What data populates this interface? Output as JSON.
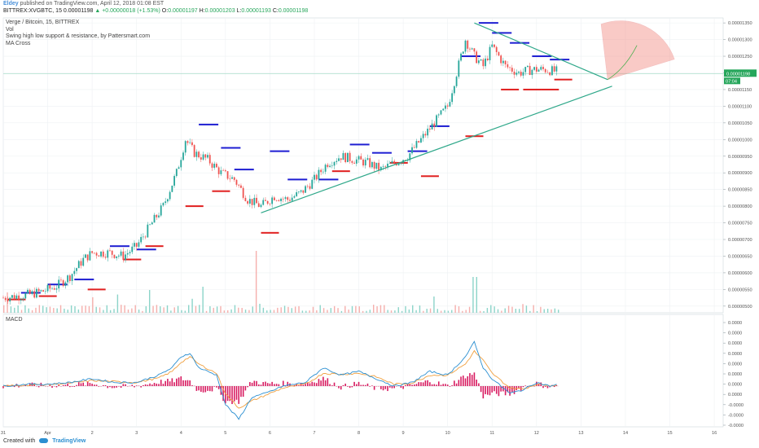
{
  "header": {
    "user": "Eldey",
    "published": "published on TradingView.com, April 12, 2018 01:08 EST",
    "symbol": "BITTREX:XVGBTC, 15",
    "last": "0.00001198",
    "change": "▲ +0.00000018 (+1.53%)",
    "open_label": "O:",
    "open": "0.00001197",
    "high_label": "H:",
    "high": "0.00001203",
    "low_label": "L:",
    "low": "0.00001193",
    "close_label": "C:",
    "close": "0.00001198"
  },
  "legend": {
    "title": "Verge / Bitcoin, 15, BITTREX",
    "vol": "Vol",
    "indicator": "Swing high low support & resistance, by Pattersmart.com",
    "ma": "MA Cross"
  },
  "macd_label": "MACD",
  "price_badge": "0.00001198",
  "price_badge2": "07:04",
  "colors": {
    "up": "#26a69a",
    "down": "#ef5350",
    "resistance": "#1e1ed2",
    "support": "#e02020",
    "trend": "#2fa88a",
    "macd_line": "#2b8fd1",
    "signal": "#f0a040",
    "hist": "#d81b60",
    "fan": "#f28b82",
    "badge": "#26a65b"
  },
  "footer": {
    "created": "Created with",
    "brand": "TradingView"
  },
  "chart_data": [
    {
      "type": "candlestick",
      "title": "Verge / Bitcoin, 15, BITTREX",
      "x_ticks": [
        "31",
        "Apr",
        "2",
        "3",
        "4",
        "5",
        "6",
        "7",
        "8",
        "9",
        "10",
        "11",
        "12",
        "13",
        "14",
        "15",
        "16"
      ],
      "y_ticks": [
        "0.00001350",
        "0.00001300",
        "0.00001250",
        "0.00001200",
        "0.00001150",
        "0.00001100",
        "0.00001050",
        "0.00001000",
        "0.00000950",
        "0.00000900",
        "0.00000850",
        "0.00000800",
        "0.00000750",
        "0.00000700",
        "0.00000650",
        "0.00000600",
        "0.00000550",
        "0.00000500"
      ],
      "ylim": [
        4.8e-06,
        1.365e-05
      ],
      "price_path": [
        [
          0,
          5.25e-06
        ],
        [
          0.3,
          5.3e-06
        ],
        [
          0.6,
          5.35e-06
        ],
        [
          0.9,
          5.45e-06
        ],
        [
          1.2,
          5.6e-06
        ],
        [
          1.5,
          5.9e-06
        ],
        [
          1.8,
          6.4e-06
        ],
        [
          2.0,
          6.6e-06
        ],
        [
          2.4,
          6.6e-06
        ],
        [
          2.7,
          6.5e-06
        ],
        [
          3.0,
          6.8e-06
        ],
        [
          3.3,
          7.4e-06
        ],
        [
          3.6,
          8e-06
        ],
        [
          3.9,
          9e-06
        ],
        [
          4.1,
          1e-05
        ],
        [
          4.3,
          9.6e-06
        ],
        [
          4.6,
          9.4e-06
        ],
        [
          4.9,
          9e-06
        ],
        [
          5.2,
          8.8e-06
        ],
        [
          5.5,
          8.2e-06
        ],
        [
          5.8,
          8e-06
        ],
        [
          6.1,
          8.3e-06
        ],
        [
          6.4,
          8.2e-06
        ],
        [
          6.7,
          8.4e-06
        ],
        [
          7.0,
          8.8e-06
        ],
        [
          7.3,
          9.3e-06
        ],
        [
          7.6,
          9.5e-06
        ],
        [
          7.9,
          9.4e-06
        ],
        [
          8.2,
          9.3e-06
        ],
        [
          8.5,
          9.1e-06
        ],
        [
          8.8,
          9.3e-06
        ],
        [
          9.1,
          9.5e-06
        ],
        [
          9.4,
          1e-05
        ],
        [
          9.7,
          1.05e-05
        ],
        [
          10.0,
          1.1e-05
        ],
        [
          10.2,
          1.2e-05
        ],
        [
          10.4,
          1.3e-05
        ],
        [
          10.6,
          1.25e-05
        ],
        [
          10.8,
          1.22e-05
        ],
        [
          11.0,
          1.28e-05
        ],
        [
          11.3,
          1.22e-05
        ],
        [
          11.6,
          1.2e-05
        ],
        [
          11.9,
          1.21e-05
        ],
        [
          12.2,
          1.21e-05
        ],
        [
          12.4,
          1.205e-05
        ]
      ],
      "volume_spikes": [
        [
          5.7,
          0.95
        ],
        [
          10.6,
          0.55
        ],
        [
          4.5,
          0.4
        ],
        [
          3.3,
          0.35
        ],
        [
          9.7,
          0.25
        ]
      ],
      "resistance_levels": [
        [
          0.4,
          5.4e-06
        ],
        [
          1.0,
          5.65e-06
        ],
        [
          1.6,
          5.8e-06
        ],
        [
          2.4,
          6.8e-06
        ],
        [
          3.0,
          6.7e-06
        ],
        [
          4.4,
          1.045e-05
        ],
        [
          4.9,
          9.75e-06
        ],
        [
          5.2,
          9.1e-06
        ],
        [
          6.0,
          9.65e-06
        ],
        [
          6.4,
          8.8e-06
        ],
        [
          7.1,
          8.8e-06
        ],
        [
          7.8,
          9.85e-06
        ],
        [
          8.3,
          9.6e-06
        ],
        [
          9.1,
          9.65e-06
        ],
        [
          9.6,
          1.04e-05
        ],
        [
          10.3,
          1.25e-05
        ],
        [
          10.7,
          1.35e-05
        ],
        [
          11.0,
          1.32e-05
        ],
        [
          11.4,
          1.29e-05
        ],
        [
          11.9,
          1.25e-05
        ],
        [
          12.3,
          1.24e-05
        ]
      ],
      "support_levels": [
        [
          0.1,
          5.2e-06
        ],
        [
          0.8,
          5.3e-06
        ],
        [
          1.9,
          5.5e-06
        ],
        [
          2.7,
          6.4e-06
        ],
        [
          3.2,
          6.8e-06
        ],
        [
          4.1,
          8e-06
        ],
        [
          4.7,
          8.45e-06
        ],
        [
          5.8,
          7.2e-06
        ],
        [
          7.4,
          9.05e-06
        ],
        [
          8.7,
          9.3e-06
        ],
        [
          9.4,
          8.9e-06
        ],
        [
          10.4,
          1.01e-05
        ],
        [
          11.2,
          1.15e-05
        ],
        [
          11.7,
          1.15e-05
        ],
        [
          12.1,
          1.15e-05
        ],
        [
          12.4,
          1.18e-05
        ]
      ],
      "trendlines": [
        {
          "from": [
            5.8,
            7.8e-06
          ],
          "to": [
            13.7,
            1.16e-05
          ]
        },
        {
          "from": [
            10.6,
            1.35e-05
          ],
          "to": [
            13.6,
            1.18e-05
          ]
        }
      ],
      "fan": {
        "origin": [
          13.6,
          1.18e-05
        ]
      }
    },
    {
      "type": "line",
      "title": "MACD",
      "y_ticks": [
        "0.0000",
        "0.0000",
        "0.0000",
        "0.0000",
        "0.0000",
        "0.0000",
        "0.0000",
        "0.0000",
        "-0.0000",
        "-0.0000",
        "-0.0000"
      ],
      "series": [
        {
          "type": "line",
          "values": [
            [
              0,
              0.0
            ],
            [
              0.5,
              0.05
            ],
            [
              1.0,
              0.05
            ],
            [
              1.5,
              0.1
            ],
            [
              2.0,
              0.2
            ],
            [
              2.5,
              0.1
            ],
            [
              3.0,
              0.1
            ],
            [
              3.5,
              0.3
            ],
            [
              3.8,
              0.5
            ],
            [
              4.0,
              0.8
            ],
            [
              4.2,
              0.9
            ],
            [
              4.4,
              0.5
            ],
            [
              4.8,
              0.3
            ],
            [
              5.0,
              -0.5
            ],
            [
              5.3,
              -0.9
            ],
            [
              5.6,
              -0.3
            ],
            [
              5.9,
              -0.2
            ],
            [
              6.3,
              0.0
            ],
            [
              6.8,
              0.1
            ],
            [
              7.2,
              0.5
            ],
            [
              7.6,
              0.3
            ],
            [
              8.0,
              0.4
            ],
            [
              8.4,
              0.2
            ],
            [
              8.8,
              0.0
            ],
            [
              9.2,
              0.1
            ],
            [
              9.6,
              0.4
            ],
            [
              10.0,
              0.3
            ],
            [
              10.4,
              0.8
            ],
            [
              10.6,
              1.2
            ],
            [
              10.8,
              0.5
            ],
            [
              11.0,
              0.2
            ],
            [
              11.4,
              -0.2
            ],
            [
              11.7,
              -0.1
            ],
            [
              12.0,
              0.1
            ],
            [
              12.3,
              0.0
            ],
            [
              12.5,
              0.05
            ]
          ]
        },
        {
          "type": "line",
          "values": [
            [
              0,
              0.0
            ],
            [
              0.5,
              0.03
            ],
            [
              1.0,
              0.04
            ],
            [
              1.5,
              0.08
            ],
            [
              2.0,
              0.15
            ],
            [
              2.5,
              0.12
            ],
            [
              3.0,
              0.1
            ],
            [
              3.5,
              0.22
            ],
            [
              3.8,
              0.4
            ],
            [
              4.0,
              0.65
            ],
            [
              4.2,
              0.8
            ],
            [
              4.4,
              0.6
            ],
            [
              4.8,
              0.35
            ],
            [
              5.0,
              -0.2
            ],
            [
              5.3,
              -0.6
            ],
            [
              5.6,
              -0.4
            ],
            [
              5.9,
              -0.25
            ],
            [
              6.3,
              -0.05
            ],
            [
              6.8,
              0.05
            ],
            [
              7.2,
              0.35
            ],
            [
              7.6,
              0.32
            ],
            [
              8.0,
              0.35
            ],
            [
              8.4,
              0.25
            ],
            [
              8.8,
              0.05
            ],
            [
              9.2,
              0.08
            ],
            [
              9.6,
              0.3
            ],
            [
              10.0,
              0.3
            ],
            [
              10.4,
              0.6
            ],
            [
              10.6,
              0.95
            ],
            [
              10.8,
              0.7
            ],
            [
              11.0,
              0.35
            ],
            [
              11.4,
              -0.05
            ],
            [
              11.7,
              -0.08
            ],
            [
              12.0,
              0.05
            ],
            [
              12.3,
              0.02
            ],
            [
              12.5,
              0.03
            ]
          ]
        }
      ]
    }
  ]
}
